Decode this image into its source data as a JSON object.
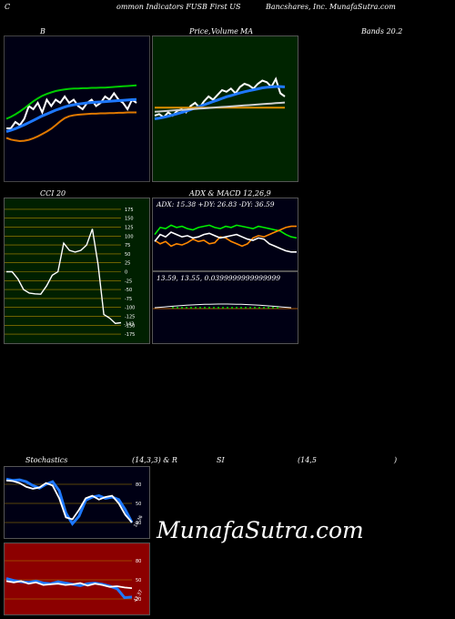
{
  "header": {
    "left": "C",
    "center": "ommon  Indicators FUSB First US",
    "right": "Bancshares, Inc. MunafaSutra.com"
  },
  "titles": {
    "bollinger": "B",
    "price": "Price,",
    "volume": "Volume",
    "ma": "MA",
    "bands": "Bands 20.2",
    "cci": "CCI 20",
    "adx_macd": "ADX  & MACD 12,26,9",
    "stochastics": "Stochastics",
    "stoch_params": "(14,3,3) & R",
    "rsi_si": "SI",
    "rsi_params": "(14,5",
    "rsi_close": ")"
  },
  "adx_text": "ADX: 15.38  +DY: 26.83 -DY: 36.59",
  "macd_text": "13.59,  13.55,  0.0399999999999999",
  "watermark": "MunafaSutra.com",
  "colors": {
    "bollinger_bg": "#000014",
    "ma_bg": "#002400",
    "cci_bg": "#002000",
    "adx_bg": "#000014",
    "stoch_bg": "#000014",
    "rsi_bg": "#8c0000",
    "blue": "#1e78ff",
    "green": "#00dd00",
    "orange": "#e07800"
  },
  "chart_data": [
    {
      "type": "line",
      "panel": "bollinger",
      "series": [
        {
          "values": [
            44,
            44,
            46,
            45,
            47,
            51,
            50,
            52,
            49,
            53,
            51,
            53,
            52,
            54,
            52,
            53,
            51,
            50,
            52,
            53,
            51,
            52,
            54,
            53,
            55,
            53,
            52,
            50,
            53,
            52
          ],
          "color": "#ffffff"
        },
        {
          "values": [
            43,
            43.4,
            43.9,
            44.5,
            45.1,
            45.8,
            46.5,
            47.2,
            47.9,
            48.5,
            49.1,
            49.7,
            50.2,
            50.7,
            51.1,
            51.4,
            51.6,
            51.8,
            52,
            52.1,
            52.2,
            52.3,
            52.4,
            52.5,
            52.6,
            52.7,
            52.8,
            52.9,
            53,
            53.1
          ],
          "color": "#1e78ff"
        },
        {
          "values": [
            47,
            47.6,
            48.4,
            49.3,
            50.3,
            51.4,
            52.5,
            53.4,
            54.2,
            54.8,
            55.3,
            55.7,
            56,
            56.2,
            56.4,
            56.5,
            56.5,
            56.6,
            56.6,
            56.7,
            56.7,
            56.8,
            56.8,
            56.9,
            57,
            57.1,
            57.2,
            57.3,
            57.4,
            57.5
          ],
          "color": "#00cc00"
        },
        {
          "values": [
            41,
            40.5,
            40.2,
            40,
            40.1,
            40.4,
            40.9,
            41.5,
            42.2,
            43,
            43.9,
            45,
            46.2,
            47.2,
            47.8,
            48.1,
            48.3,
            48.4,
            48.5,
            48.6,
            48.6,
            48.7,
            48.7,
            48.8,
            48.8,
            48.9,
            48.9,
            49,
            49,
            49
          ],
          "color": "#e07800"
        }
      ],
      "ylim": [
        30,
        70
      ]
    },
    {
      "type": "line",
      "panel": "price_volume_ma",
      "series": [
        {
          "values": [
            48,
            48.5,
            47.5,
            49,
            48,
            49.5,
            50,
            49,
            51,
            52,
            50.5,
            52.5,
            54,
            53,
            54.5,
            56,
            55.5,
            56.5,
            55,
            57,
            58,
            57.5,
            56.5,
            58,
            59,
            58.5,
            57,
            59.5,
            55,
            54
          ],
          "color": "#ffffff"
        },
        {
          "values": [
            47,
            47.2,
            47.5,
            47.8,
            48.2,
            48.6,
            49,
            49.4,
            49.9,
            50.4,
            50.9,
            51.4,
            51.9,
            52.4,
            52.9,
            53.4,
            53.9,
            54.3,
            54.7,
            55.1,
            55.5,
            55.8,
            56.1,
            56.4,
            56.7,
            56.9,
            57,
            57.1,
            57.1,
            57
          ],
          "color": "#1e78ff"
        },
        {
          "values": [
            50.5,
            50.5,
            50.5,
            50.5,
            50.5,
            50.5,
            50.5,
            50.5,
            50.5,
            50.5,
            50.5,
            50.5,
            50.5,
            50.5,
            50.5,
            50.5,
            50.5,
            50.5,
            50.5,
            50.5,
            50.5,
            50.5,
            50.5,
            50.5,
            50.5,
            50.5,
            50.5,
            50.5,
            50.5,
            50.5
          ],
          "color": "#e09000"
        },
        {
          "values": [
            49.2,
            49.3,
            49.4,
            49.5,
            49.6,
            49.7,
            49.8,
            49.9,
            50,
            50.1,
            50.2,
            50.3,
            50.4,
            50.5,
            50.6,
            50.7,
            50.8,
            50.9,
            51,
            51.1,
            51.2,
            51.3,
            51.4,
            51.5,
            51.6,
            51.7,
            51.8,
            51.9,
            52,
            52.1
          ],
          "color": "#d0d0d0"
        }
      ],
      "ylim": [
        30,
        70
      ]
    },
    {
      "type": "line",
      "panel": "cci",
      "series": [
        {
          "values": [
            0,
            0,
            -20,
            -50,
            -60,
            -62,
            -63,
            -40,
            -10,
            0,
            80,
            60,
            55,
            60,
            75,
            120,
            20,
            -120,
            -130,
            -145,
            -143
          ],
          "color": "#ffffff"
        }
      ],
      "yticks": [
        175,
        150,
        125,
        100,
        75,
        50,
        25,
        0,
        -25,
        -50,
        -75,
        -100,
        -125,
        -150,
        -175
      ],
      "ylim": [
        -185,
        185
      ],
      "last_label": "-143"
    },
    {
      "type": "line",
      "panel": "adx",
      "series": [
        {
          "values": [
            30,
            36,
            35,
            38,
            36,
            37,
            35,
            34,
            36,
            37,
            38,
            36,
            35,
            37,
            36,
            38,
            37,
            36,
            35,
            37,
            36,
            35,
            34,
            33,
            30,
            28,
            27
          ],
          "color": "#00ee00"
        },
        {
          "values": [
            25,
            22,
            24,
            20,
            22,
            21,
            23,
            26,
            24,
            25,
            22,
            23,
            28,
            27,
            24,
            22,
            20,
            22,
            27,
            29,
            28,
            30,
            32,
            34,
            36,
            37,
            37
          ],
          "color": "#ff8800"
        },
        {
          "values": [
            24,
            30,
            28,
            32,
            30,
            28,
            29,
            27,
            28,
            30,
            31,
            29,
            27,
            28,
            29,
            30,
            28,
            26,
            25,
            27,
            26,
            22,
            20,
            18,
            16,
            15,
            15
          ],
          "color": "#ffffff"
        }
      ],
      "ylim": [
        0,
        50
      ]
    },
    {
      "type": "line",
      "panel": "stochastics",
      "series": [
        {
          "values": [
            88,
            86,
            87,
            84,
            78,
            74,
            80,
            84,
            70,
            35,
            18,
            30,
            55,
            60,
            62,
            58,
            60,
            56,
            40,
            20
          ],
          "color": "#1e78ff"
        },
        {
          "values": [
            86,
            85,
            82,
            76,
            73,
            75,
            82,
            78,
            58,
            28,
            25,
            40,
            58,
            62,
            56,
            60,
            62,
            50,
            32,
            20
          ],
          "color": "#ffffff"
        }
      ],
      "yticks": [
        80,
        50,
        20
      ],
      "ylim": [
        0,
        100
      ],
      "last_label": "19.36"
    },
    {
      "type": "line",
      "panel": "rsi",
      "series": [
        {
          "values": [
            52,
            49,
            47,
            46,
            48,
            45,
            44,
            47,
            45,
            43,
            41,
            44,
            45,
            43,
            40,
            36,
            22,
            23
          ],
          "color": "#1e78ff"
        },
        {
          "values": [
            48,
            46,
            48,
            44,
            46,
            42,
            43,
            44,
            42,
            43,
            45,
            41,
            44,
            42,
            39,
            40,
            38,
            37
          ],
          "color": "#ffffff"
        }
      ],
      "yticks": [
        80,
        50,
        20
      ],
      "ylim": [
        0,
        100
      ],
      "last_label": "42.37"
    }
  ]
}
